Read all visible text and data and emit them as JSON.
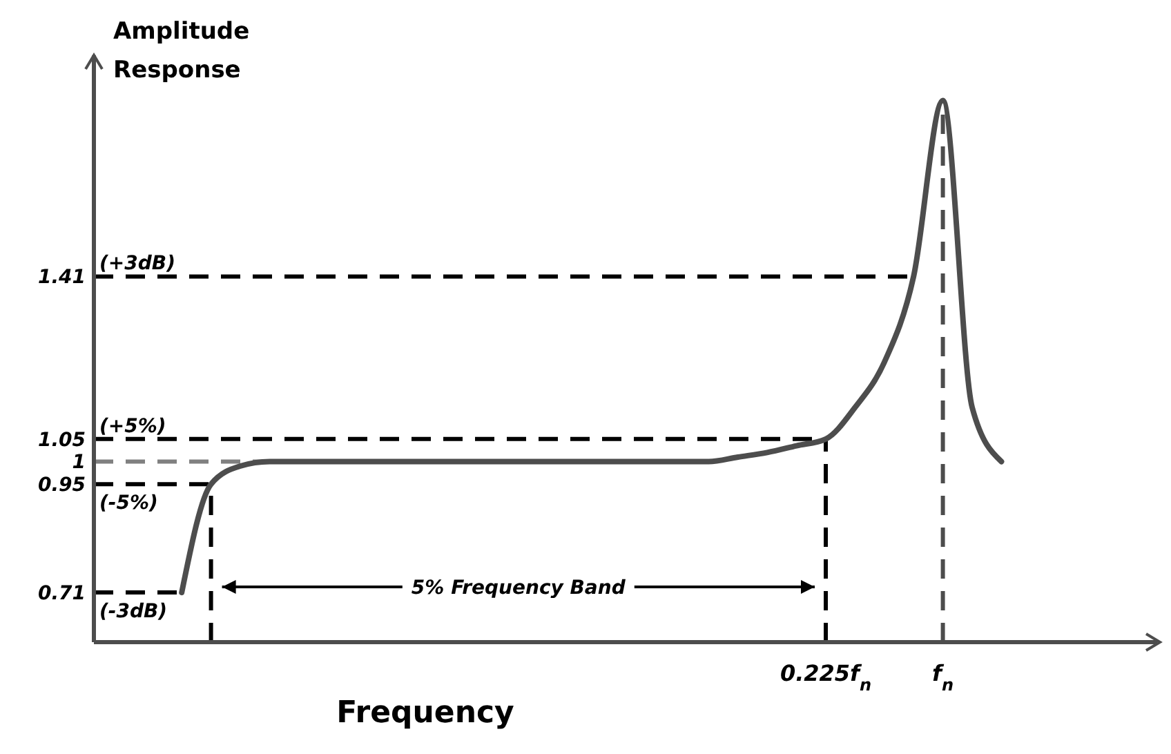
{
  "chart_data": {
    "type": "line",
    "ylabel": "Amplitude Response",
    "xlabel": "Frequency",
    "categories": [
      null,
      null,
      null,
      null,
      null,
      null,
      null,
      null,
      null,
      null,
      null,
      null,
      null,
      null,
      null,
      null,
      null,
      null,
      null,
      null,
      null,
      null,
      null,
      null,
      null,
      "0.225f$_{n}$",
      null,
      null,
      null,
      "f$_{n}$",
      null,
      null,
      null,
      null,
      null,
      null
    ],
    "ylim": [
      0.6,
      1.9
    ],
    "yticks": [
      0.71,
      0.95,
      1,
      1.05,
      1.41
    ],
    "grid": false,
    "marker": "none",
    "line_style": "solid",
    "series": [
      {
        "color": "#4d4d4d",
        "values": [
          null,
          null,
          null,
          0.71,
          0.95,
          0.99,
          1,
          1,
          1,
          1,
          1,
          1,
          1,
          1,
          1,
          1,
          1,
          1,
          1,
          1,
          1,
          1,
          1.01,
          1.02,
          1.035,
          1.05,
          1.12,
          1.22,
          1.41,
          1.8,
          1.12,
          1.0,
          null,
          null,
          null,
          null
        ]
      }
    ],
    "ref_lines": [
      {
        "axis": "y",
        "value": 1.41,
        "color": "#000000",
        "line_style": "dashed"
      },
      {
        "axis": "y",
        "value": 1.05,
        "color": "#000000",
        "line_style": "dashed"
      },
      {
        "axis": "y",
        "value": 1,
        "color": "#808080",
        "line_style": "dashed"
      },
      {
        "axis": "y",
        "value": 0.95,
        "color": "#000000",
        "line_style": "dashed"
      },
      {
        "axis": "y",
        "value": 0.71,
        "color": "#000000",
        "line_style": "dashed"
      },
      {
        "axis": "x",
        "value": "0.225f$_{n}$",
        "color": "#000000",
        "line_style": "dashed"
      },
      {
        "axis": "x",
        "value": "f$_{n}$",
        "color": "#4d4d4d",
        "line_style": "dashed"
      }
    ],
    "annotations": [
      {
        "text": "(+3dB)",
        "y": 1.41
      },
      {
        "text": "(+5%)",
        "y": 1.05
      },
      {
        "text": "(-5%)",
        "y": 0.95
      },
      {
        "text": "(-3dB)",
        "y": 0.71
      },
      "5% Frequency Band"
    ]
  }
}
